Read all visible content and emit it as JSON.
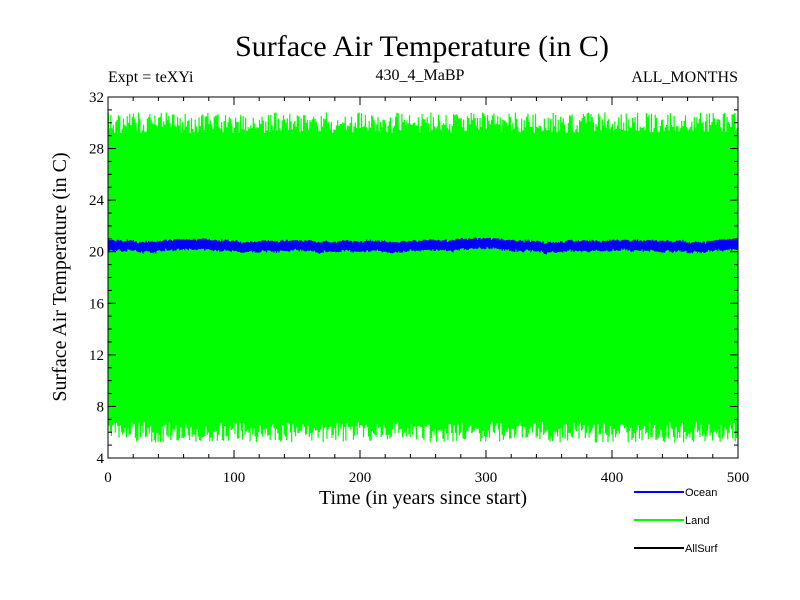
{
  "chart_data": {
    "type": "line",
    "title": "Surface Air Temperature (in C)",
    "subtitle_left": "Expt = teXYi",
    "subtitle_center": "430_4_MaBP",
    "subtitle_right": "ALL_MONTHS",
    "xlabel": "Time (in years since start)",
    "ylabel": "Surface Air Temperature (in C)",
    "xlim": [
      0,
      500
    ],
    "ylim": [
      4,
      32
    ],
    "x_ticks": [
      0,
      100,
      200,
      300,
      400,
      500
    ],
    "y_ticks": [
      4,
      8,
      12,
      16,
      20,
      24,
      28,
      32
    ],
    "grid": false,
    "legend_position": "bottom-right",
    "series": [
      {
        "name": "Ocean",
        "color": "#0000ff",
        "typical_range": [
          20.0,
          21.0
        ],
        "mean": 20.5
      },
      {
        "name": "Land",
        "color": "#00ff00",
        "typical_range": [
          6.0,
          30.0
        ],
        "mean": 18.0
      },
      {
        "name": "AllSurf",
        "color": "#000000"
      }
    ]
  }
}
